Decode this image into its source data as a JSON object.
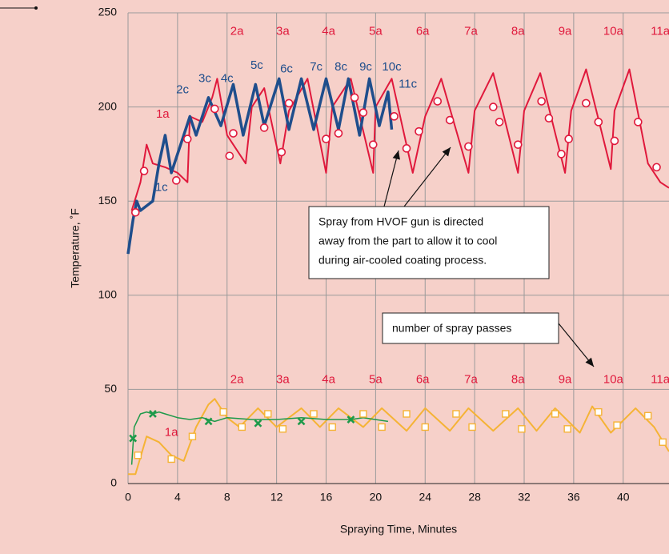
{
  "chart_data": {
    "type": "line",
    "xlabel": "Spraying Time, Minutes",
    "ylabel": "Temperature, ˚F",
    "xlim": [
      0,
      43.7
    ],
    "ylim": [
      0,
      250
    ],
    "xticks": [
      0,
      4,
      8,
      12,
      16,
      20,
      24,
      28,
      32,
      36,
      40
    ],
    "yticks": [
      0,
      50,
      100,
      150,
      200,
      250
    ],
    "grid": true,
    "series": [
      {
        "color": "#e0193c",
        "style": "line",
        "x": [
          0.3,
          1,
          1.5,
          2,
          3,
          4,
          4.8,
          5,
          6,
          6.8,
          7.2,
          8,
          9.5,
          10,
          11,
          12.3,
          13,
          14.5,
          16,
          16.5,
          18,
          19.8,
          20,
          21.3,
          23,
          24,
          25.3,
          27.5,
          28,
          29.5,
          31.5,
          32,
          33.3,
          35.3,
          35.8,
          37,
          39,
          39.3,
          40.5,
          42,
          43,
          43.7
        ],
        "values": [
          145,
          160,
          180,
          170,
          168,
          165,
          160,
          195,
          192,
          205,
          215,
          185,
          170,
          200,
          210,
          170,
          198,
          215,
          165,
          200,
          215,
          165,
          200,
          215,
          165,
          195,
          215,
          165,
          198,
          218,
          165,
          198,
          218,
          165,
          198,
          220,
          167,
          198,
          220,
          170,
          160,
          157
        ]
      },
      {
        "color": "#1f4e8c",
        "style": "line",
        "x": [
          0,
          0.4,
          0.7,
          1,
          2,
          2.5,
          3,
          3.5,
          4.5,
          5,
          5.5,
          6.5,
          7.5,
          8.5,
          9.3,
          10.3,
          11,
          12.2,
          13,
          14,
          15,
          16,
          17,
          17.8,
          18.7,
          19.5,
          20.3,
          21,
          21.3
        ],
        "values": [
          122,
          140,
          150,
          145,
          150,
          170,
          185,
          165,
          185,
          195,
          185,
          205,
          190,
          212,
          185,
          212,
          190,
          215,
          188,
          215,
          188,
          215,
          188,
          215,
          185,
          215,
          190,
          208,
          188
        ]
      },
      {
        "color": "#f5b335",
        "style": "line",
        "x": [
          0,
          0.6,
          1.5,
          2.5,
          3.5,
          4.5,
          5.5,
          6.5,
          7,
          8,
          9,
          10.5,
          12,
          14,
          15.5,
          17,
          19,
          20.5,
          22.5,
          24,
          26,
          27.5,
          29.5,
          31.5,
          33,
          34.5,
          36.5,
          37.5,
          39,
          41,
          42.5,
          43.7
        ],
        "values": [
          5,
          5,
          25,
          22,
          15,
          12,
          30,
          42,
          45,
          35,
          30,
          40,
          30,
          40,
          30,
          40,
          30,
          40,
          28,
          40,
          28,
          40,
          28,
          40,
          28,
          40,
          27,
          41,
          27,
          40,
          30,
          17
        ]
      },
      {
        "color": "#1e9a4a",
        "style": "line",
        "x": [
          0.3,
          0.5,
          1,
          1.5,
          2,
          2.5,
          3,
          4,
          5,
          6,
          7,
          8,
          10,
          12,
          14,
          16,
          18,
          19,
          21
        ],
        "values": [
          10,
          30,
          37,
          38,
          37,
          38,
          37,
          35,
          34,
          35,
          33,
          35,
          34,
          34,
          35,
          34,
          34,
          35,
          33
        ]
      },
      {
        "color": "#e0193c",
        "style": "circle",
        "x": [
          0.6,
          1.3,
          3.9,
          4.8,
          7,
          8.2,
          8.5,
          11,
          12.4,
          13,
          16,
          17,
          18.3,
          19,
          19.8,
          21.5,
          22.5,
          23.5,
          25,
          26,
          27.5,
          29.5,
          30,
          31.5,
          33.4,
          34,
          35,
          35.6,
          37,
          38,
          39.3,
          41.2,
          42.7
        ],
        "values": [
          144,
          166,
          161,
          183,
          199,
          174,
          186,
          189,
          176,
          202,
          183,
          186,
          205,
          197,
          180,
          195,
          178,
          187,
          203,
          193,
          179,
          200,
          192,
          180,
          203,
          194,
          175,
          183,
          202,
          192,
          182,
          192,
          168
        ]
      },
      {
        "color": "#f5b335",
        "style": "square",
        "x": [
          0.8,
          3.5,
          5.2,
          7.7,
          9.2,
          11.3,
          12.5,
          15,
          16.5,
          19,
          20.5,
          22.5,
          24,
          26.5,
          27.8,
          30.5,
          31.8,
          34.5,
          35.5,
          38,
          39.5,
          42,
          43.2
        ],
        "values": [
          15,
          13,
          25,
          38,
          30,
          37,
          29,
          37,
          30,
          37,
          30,
          37,
          30,
          37,
          30,
          37,
          29,
          37,
          29,
          38,
          31,
          36,
          22
        ]
      },
      {
        "color": "#1e9a4a",
        "style": "cross",
        "x": [
          0.4,
          2,
          6.5,
          10.5,
          14,
          18
        ],
        "values": [
          24,
          37,
          33,
          32,
          33,
          34
        ]
      }
    ],
    "annotations": [
      "1a",
      "2a",
      "3a",
      "4a",
      "5a",
      "6a",
      "7a",
      "8a",
      "9a",
      "10a",
      "11a",
      "1a",
      "2a",
      "3a",
      "4a",
      "5a",
      "6a",
      "7a",
      "8a",
      "9a",
      "10a",
      "11a",
      "1c",
      "2c",
      "3c",
      "4c",
      "5c",
      "6c",
      "7c",
      "8c",
      "9c",
      "10c",
      "11c"
    ],
    "callouts": [
      [
        "Spray from HVOF gun is directed",
        "away from the part to allow it to cool",
        "during air-cooled coating process."
      ],
      [
        "number of spray passes"
      ]
    ]
  }
}
